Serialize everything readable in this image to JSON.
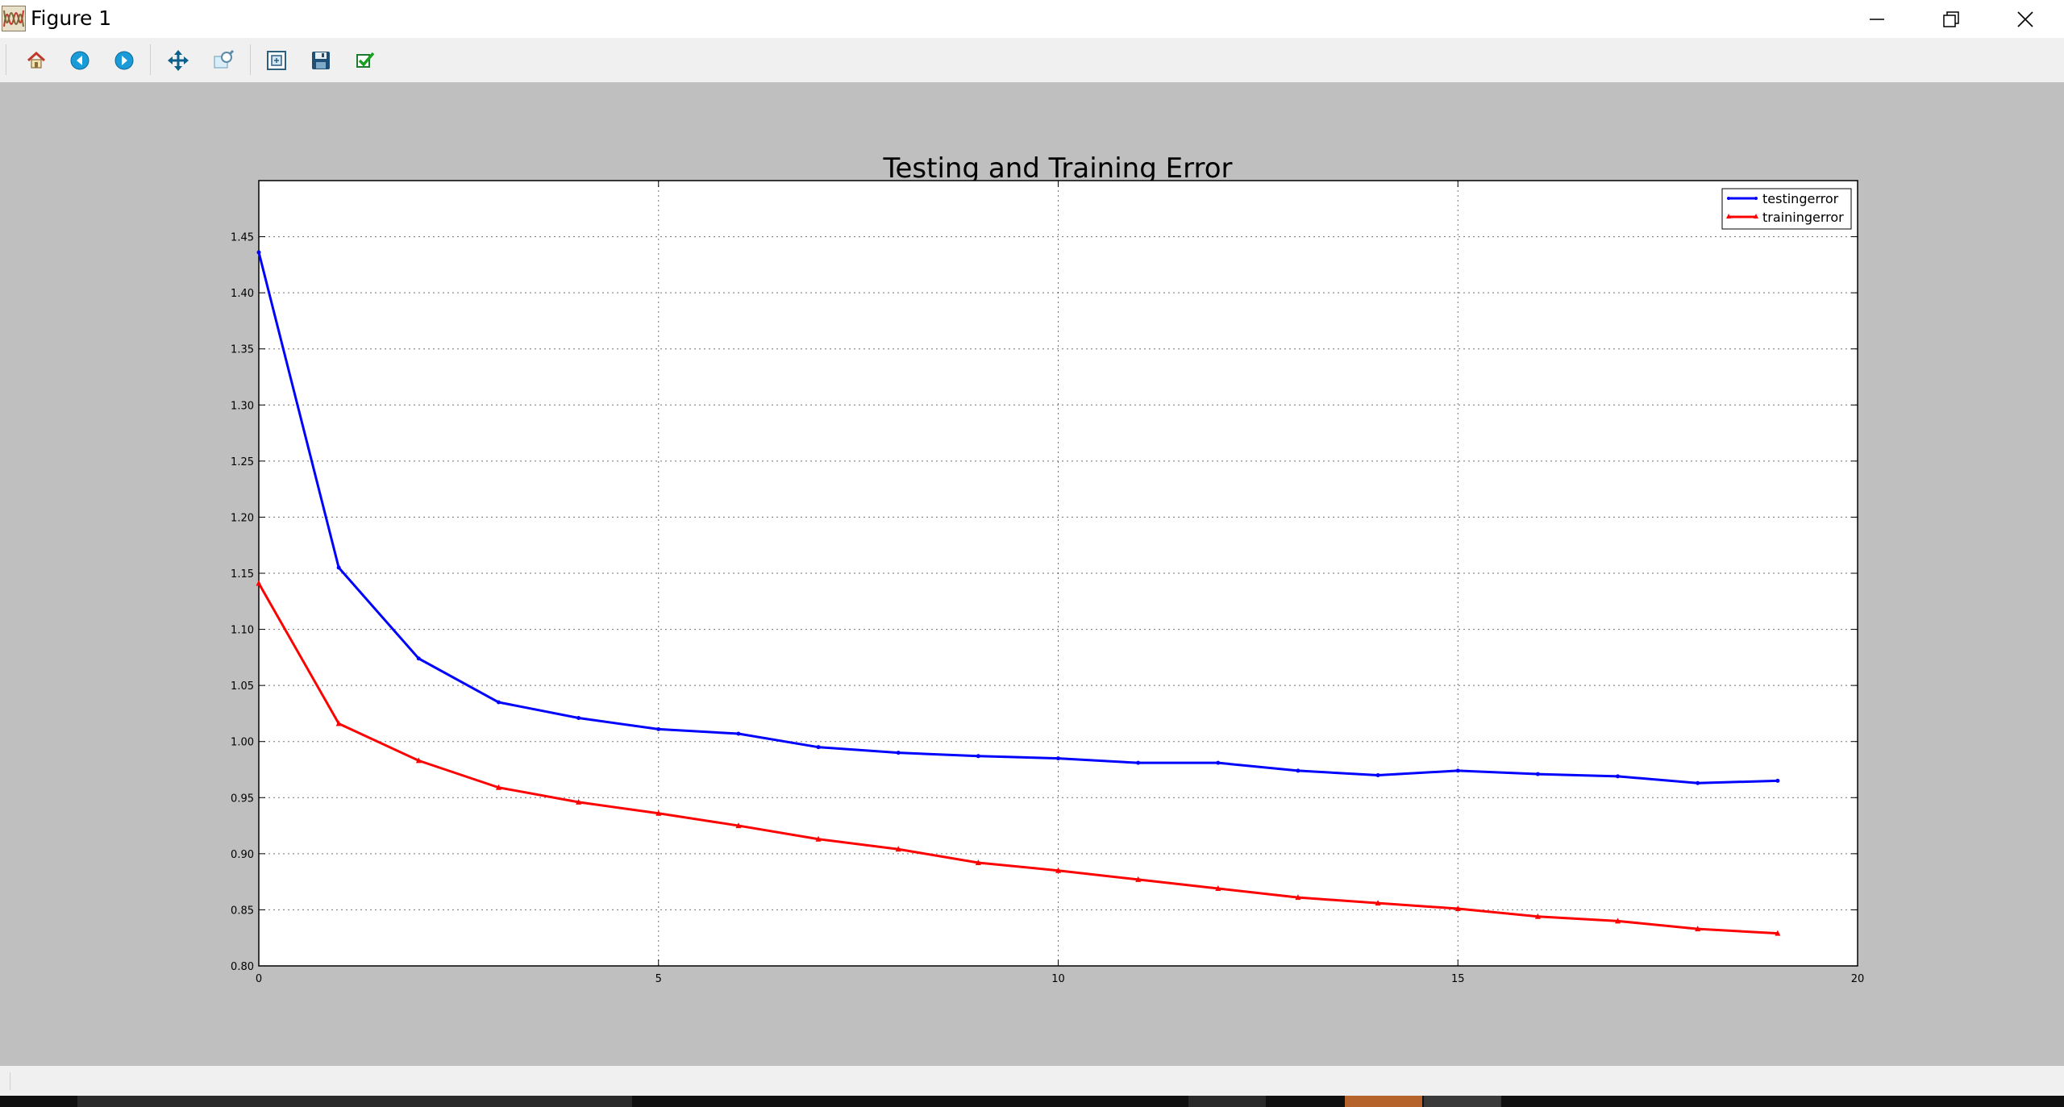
{
  "window": {
    "title": "Figure 1",
    "minimize_icon": "minimize-icon",
    "restore_icon": "restore-icon",
    "close_icon": "close-icon"
  },
  "toolbar": {
    "buttons": [
      {
        "name": "home-button",
        "icon": "home-icon"
      },
      {
        "name": "back-button",
        "icon": "back-arrow-icon"
      },
      {
        "name": "forward-button",
        "icon": "forward-arrow-icon"
      },
      {
        "name": "pan-button",
        "icon": "move-icon"
      },
      {
        "name": "zoom-button",
        "icon": "zoom-icon"
      },
      {
        "name": "configure-subplots-button",
        "icon": "subplots-icon"
      },
      {
        "name": "save-button",
        "icon": "floppy-disk-icon"
      },
      {
        "name": "edit-axis-button",
        "icon": "checkmark-icon"
      }
    ]
  },
  "chart_data": {
    "type": "line",
    "title": "Testing and Training Error",
    "xlabel": "",
    "ylabel": "",
    "xlim": [
      0,
      20
    ],
    "ylim": [
      0.8,
      1.5
    ],
    "xticks": [
      "0",
      "5",
      "10",
      "15",
      "20"
    ],
    "yticks": [
      "0.80",
      "0.85",
      "0.90",
      "0.95",
      "1.00",
      "1.05",
      "1.10",
      "1.15",
      "1.20",
      "1.25",
      "1.30",
      "1.35",
      "1.40",
      "1.45"
    ],
    "grid": true,
    "legend_position": "top-right",
    "x": [
      0,
      1,
      2,
      3,
      4,
      5,
      6,
      7,
      8,
      9,
      10,
      11,
      12,
      13,
      14,
      15,
      16,
      17,
      18,
      19
    ],
    "series": [
      {
        "name": "testingerror",
        "color": "#0000ff",
        "marker": "point",
        "values": [
          1.436,
          1.155,
          1.074,
          1.035,
          1.021,
          1.011,
          1.007,
          0.995,
          0.99,
          0.987,
          0.985,
          0.981,
          0.981,
          0.974,
          0.97,
          0.974,
          0.971,
          0.969,
          0.963,
          0.965
        ]
      },
      {
        "name": "trainingerror",
        "color": "#ff0000",
        "marker": "triangle",
        "values": [
          1.141,
          1.016,
          0.983,
          0.959,
          0.946,
          0.936,
          0.925,
          0.913,
          0.904,
          0.892,
          0.885,
          0.877,
          0.869,
          0.861,
          0.856,
          0.851,
          0.844,
          0.84,
          0.833,
          0.829
        ]
      }
    ]
  }
}
